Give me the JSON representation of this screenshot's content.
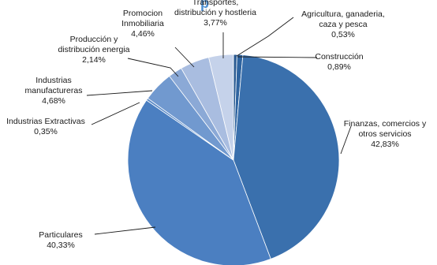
{
  "chart_data": {
    "type": "pie",
    "title_fragment": "p",
    "start_angle_deg": 0,
    "direction": "clockwise",
    "slices": [
      {
        "name": "Agricultura, ganaderia, caza y pesca",
        "label_lines": [
          "Agricultura, ganaderia,",
          "caza y pesca"
        ],
        "value": 0.53,
        "value_label": "0,53%",
        "color": "#2a5a92"
      },
      {
        "name": "Construcción",
        "label_lines": [
          "Construcción"
        ],
        "value": 0.89,
        "value_label": "0,89%",
        "color": "#2f64a0"
      },
      {
        "name": "Finanzas, comercios y otros servicios",
        "label_lines": [
          "Finanzas, comercios y",
          "otros servicios"
        ],
        "value": 42.83,
        "value_label": "42,83%",
        "color": "#3a70ad"
      },
      {
        "name": "Particulares",
        "label_lines": [
          "Particulares"
        ],
        "value": 40.33,
        "value_label": "40,33%",
        "color": "#4b7fc1"
      },
      {
        "name": "Industrias Extractivas",
        "label_lines": [
          "Industrias Extractivas"
        ],
        "value": 0.35,
        "value_label": "0,35%",
        "color": "#5d8cc8"
      },
      {
        "name": "Industrias manufactureras",
        "label_lines": [
          "Industrias",
          "manufactureras"
        ],
        "value": 4.68,
        "value_label": "4,68%",
        "color": "#7199cf"
      },
      {
        "name": "Producción y distribución energia",
        "label_lines": [
          "Producción y",
          "distribución energia"
        ],
        "value": 2.14,
        "value_label": "2,14%",
        "color": "#8ba9d6"
      },
      {
        "name": "Promocion Inmobiliaria",
        "label_lines": [
          "Promocion",
          "Inmobiliaria"
        ],
        "value": 4.46,
        "value_label": "4,46%",
        "color": "#a9bde0"
      },
      {
        "name": "Transportes, distribución y hostleria",
        "label_lines": [
          "Transportes,",
          "distribución y hostleria"
        ],
        "value": 3.77,
        "value_label": "3,77%",
        "color": "#c5d2ea"
      }
    ]
  }
}
